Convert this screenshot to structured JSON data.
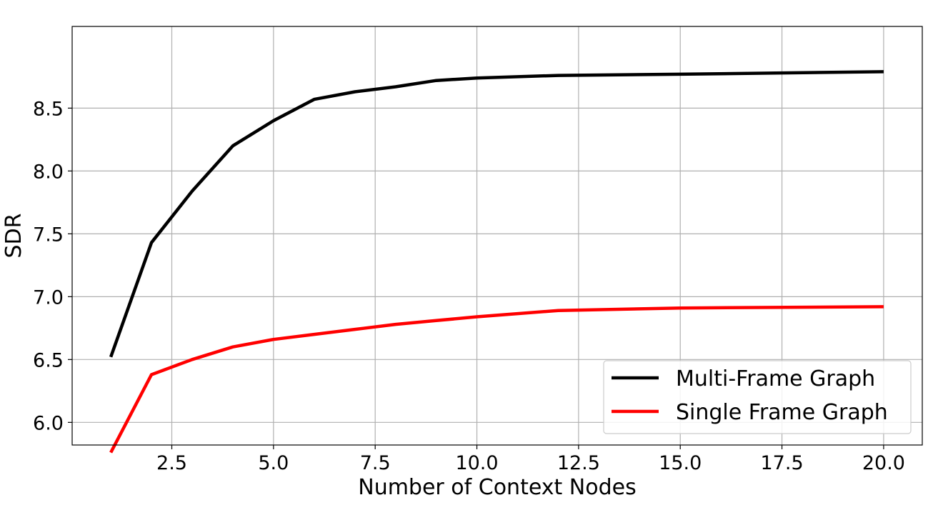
{
  "chart_data": {
    "type": "line",
    "title": "",
    "xlabel": "Number of Context Nodes",
    "ylabel": "SDR",
    "xlim": [
      0.05,
      20.95
    ],
    "ylim": [
      5.82,
      9.15
    ],
    "xticks": [
      2.5,
      5.0,
      7.5,
      10.0,
      12.5,
      15.0,
      17.5,
      20.0
    ],
    "xtick_labels": [
      "2.5",
      "5.0",
      "7.5",
      "10.0",
      "12.5",
      "15.0",
      "17.5",
      "20.0"
    ],
    "yticks": [
      6.0,
      6.5,
      7.0,
      7.5,
      8.0,
      8.5
    ],
    "ytick_labels": [
      "6.0",
      "6.5",
      "7.0",
      "7.5",
      "8.0",
      "8.5"
    ],
    "grid": true,
    "legend_position": "lower-right",
    "series": [
      {
        "name": "Multi-Frame Graph",
        "color": "#000000",
        "x": [
          1,
          2,
          3,
          4,
          5,
          6,
          7,
          8,
          9,
          10,
          12,
          15,
          20
        ],
        "y": [
          6.52,
          7.43,
          7.84,
          8.2,
          8.4,
          8.57,
          8.63,
          8.67,
          8.72,
          8.74,
          8.76,
          8.77,
          8.79
        ]
      },
      {
        "name": "Single Frame Graph",
        "color": "#ff0000",
        "x": [
          1,
          2,
          3,
          4,
          5,
          6,
          7,
          8,
          9,
          10,
          12,
          15,
          20
        ],
        "y": [
          5.76,
          6.38,
          6.5,
          6.6,
          6.66,
          6.7,
          6.74,
          6.78,
          6.81,
          6.84,
          6.89,
          6.91,
          6.92
        ]
      }
    ]
  }
}
